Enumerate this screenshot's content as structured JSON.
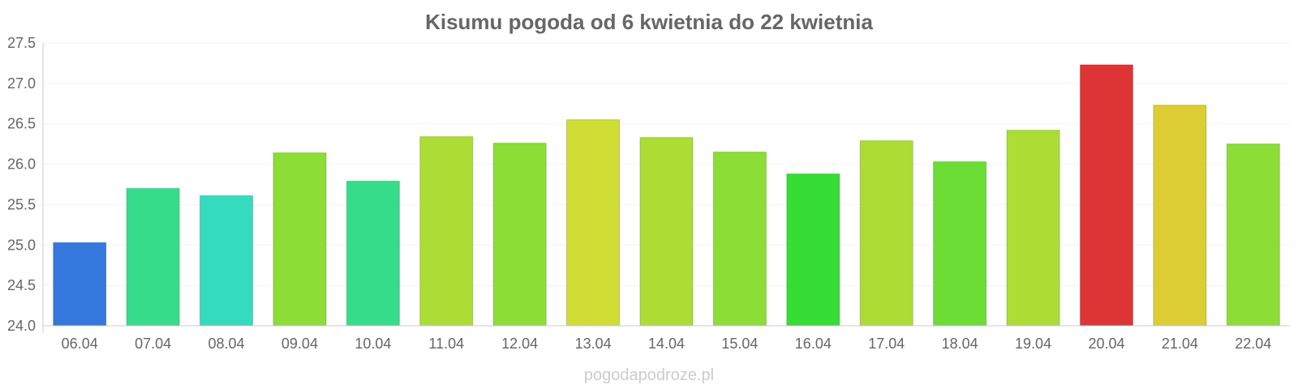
{
  "chart_data": {
    "type": "bar",
    "title": "Kisumu pogoda od 6 kwietnia do 22 kwietnia",
    "xlabel": "",
    "ylabel": "",
    "ylim": [
      24.0,
      27.5
    ],
    "yticks": [
      "24.0",
      "24.5",
      "25.0",
      "25.5",
      "26.0",
      "26.5",
      "27.0",
      "27.5"
    ],
    "grid": true,
    "legend": "none",
    "categories": [
      "06.04",
      "07.04",
      "08.04",
      "09.04",
      "10.04",
      "11.04",
      "12.04",
      "13.04",
      "14.04",
      "15.04",
      "16.04",
      "17.04",
      "18.04",
      "19.04",
      "20.04",
      "21.04",
      "22.04"
    ],
    "values": [
      25.03,
      25.7,
      25.61,
      26.14,
      25.79,
      26.34,
      26.26,
      26.55,
      26.33,
      26.15,
      25.88,
      26.29,
      26.03,
      26.42,
      27.23,
      26.73,
      26.25
    ],
    "colors": [
      "#3578dd",
      "#35dd8b",
      "#35dbbd",
      "#8cdd35",
      "#35dd8b",
      "#acdd35",
      "#8cdd35",
      "#cfdd35",
      "#acdd35",
      "#8cdd35",
      "#35dd35",
      "#acdd35",
      "#6cdd35",
      "#acdd35",
      "#dd3535",
      "#ddcd35",
      "#8cdd35"
    ]
  },
  "watermark": "pogodapodroze.pl"
}
